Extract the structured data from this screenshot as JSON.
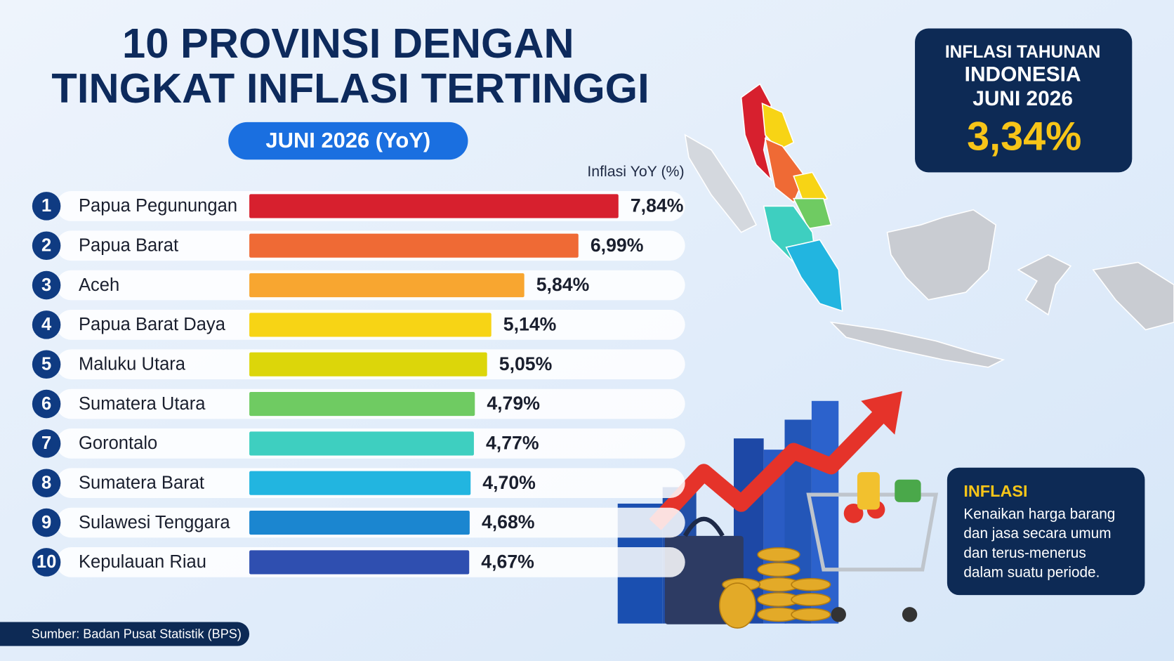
{
  "chart_data": {
    "type": "bar",
    "orientation": "horizontal",
    "title": [
      "10 PROVINSI DENGAN",
      "TINGKAT INFLASI TERTINGGI"
    ],
    "subtitle": "JUNI 2026 (YoY)",
    "x_label": "Inflasi YoY (%)",
    "ranks": [
      1,
      2,
      3,
      4,
      5,
      6,
      7,
      8,
      9,
      10
    ],
    "categories": [
      "Papua Pegunungan",
      "Papua Barat",
      "Aceh",
      "Papua Barat Daya",
      "Maluku Utara",
      "Sumatera Utara",
      "Gorontalo",
      "Sumatera Barat",
      "Sulawesi Tenggara",
      "Kepulauan Riau"
    ],
    "values": [
      7.84,
      6.99,
      5.84,
      5.14,
      5.05,
      4.79,
      4.77,
      4.7,
      4.68,
      4.67
    ],
    "value_labels": [
      "7,84%",
      "6,99%",
      "5,84%",
      "5,14%",
      "5,05%",
      "4,79%",
      "4,77%",
      "4,70%",
      "4,68%",
      "4,67%"
    ],
    "colors": [
      "#d7202e",
      "#ef6a35",
      "#f8a630",
      "#f7d415",
      "#dcd60a",
      "#6fcb62",
      "#3ecfc0",
      "#22b5e0",
      "#1b86d0",
      "#2f4fb0"
    ],
    "source": "Sumber: Badan Pusat Statistik (BPS)"
  },
  "headline_box": {
    "lines": [
      "INFLASI TAHUNAN",
      "INDONESIA",
      "JUNI 2026"
    ],
    "value": 3.34,
    "value_label": "3,34%"
  },
  "definition_box": {
    "title": "INFLASI",
    "lines": [
      "Kenaikan harga barang",
      "dan jasa secara umum",
      "dan terus-menerus",
      "dalam suatu periode."
    ]
  }
}
